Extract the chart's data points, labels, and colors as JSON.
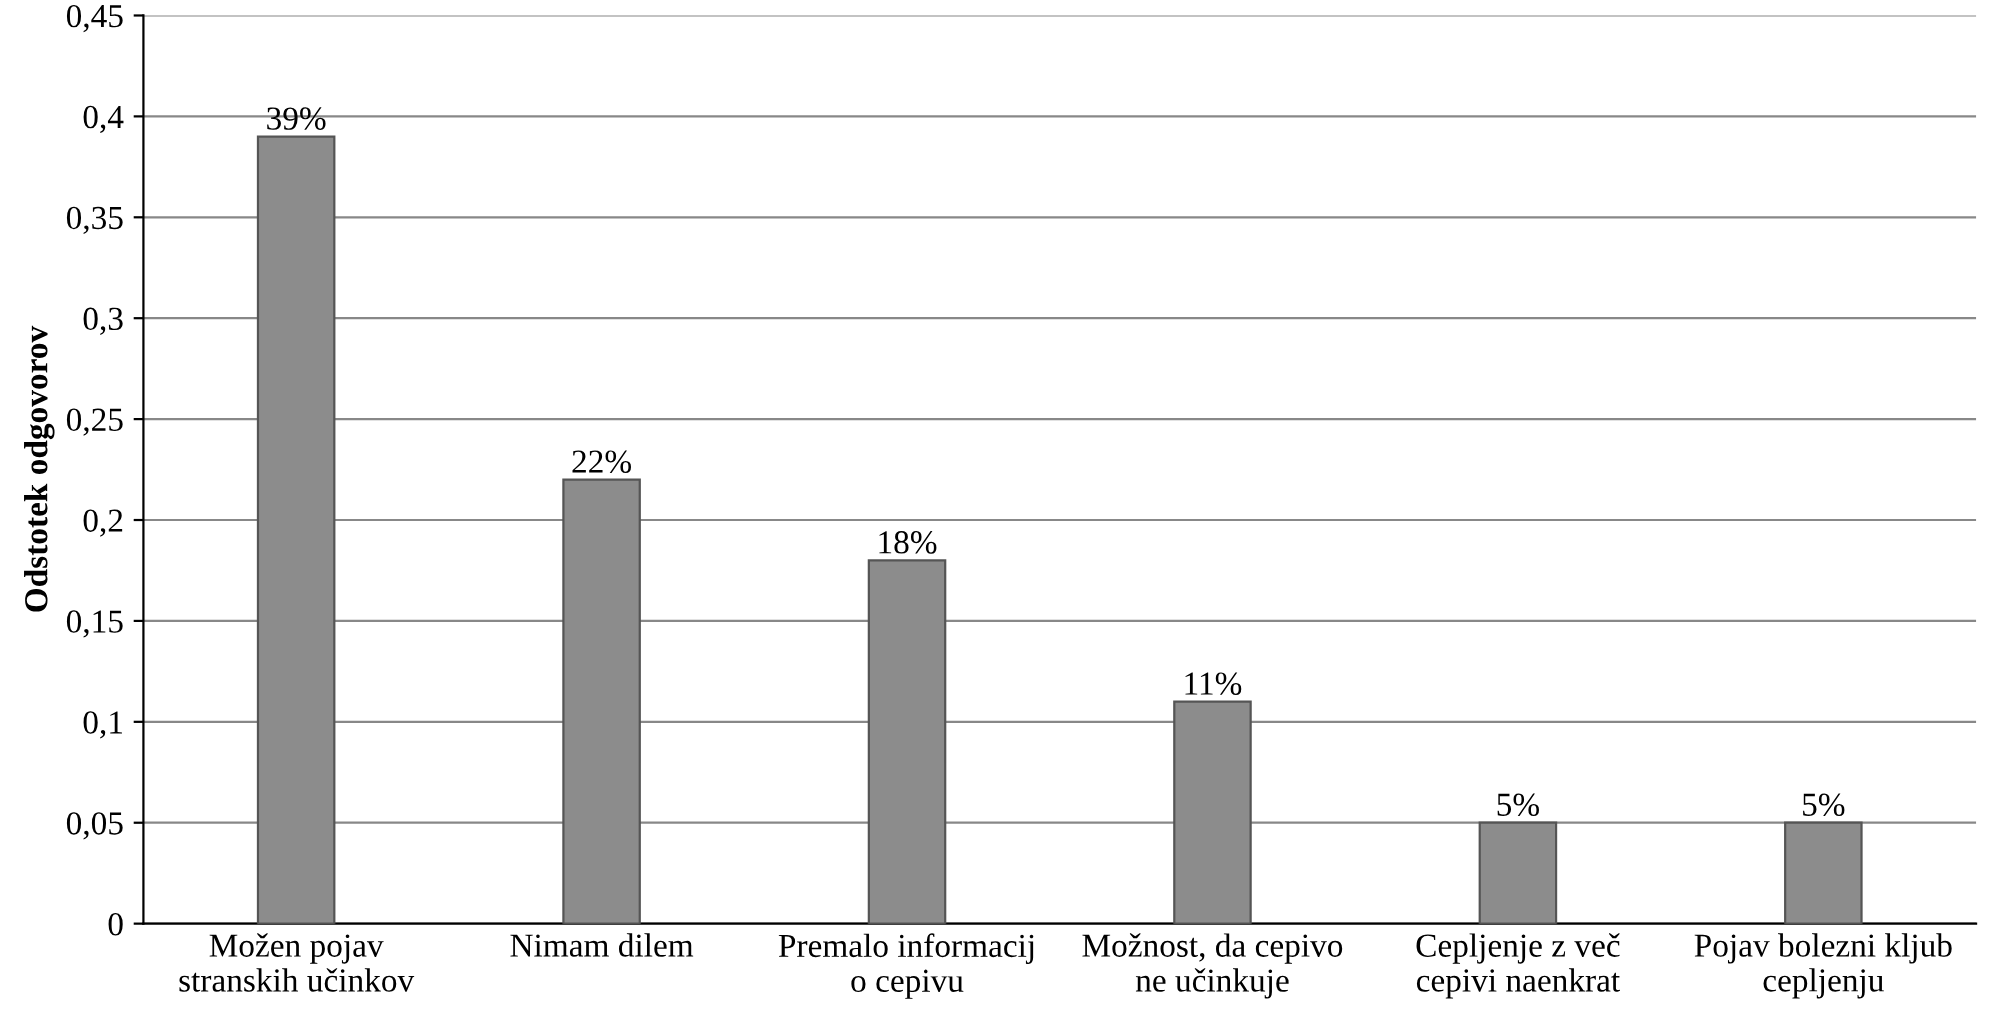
{
  "chart_data": {
    "type": "bar",
    "ylabel": "Odstotek odgovorov",
    "categories": [
      "Možen pojav\nstranskih učinkov",
      "Nimam dilem",
      "Premalo informacij\no cepivu",
      "Možnost, da cepivo\nne učinkuje",
      "Cepljenje z več\ncepivi naenkrat",
      "Pojav bolezni kljub\ncepljenju"
    ],
    "values": [
      0.39,
      0.22,
      0.18,
      0.11,
      0.05,
      0.05
    ],
    "value_labels": [
      "39%",
      "22%",
      "18%",
      "11%",
      "5%",
      "5%"
    ],
    "color": "#8c8c8c",
    "ylim": [
      0,
      0.45
    ],
    "yticks": [
      0,
      {
        "value": 0.05,
        "label": "0,05"
      },
      {
        "value": 0.1,
        "label": "0,1"
      },
      {
        "value": 0.15,
        "label": "0,15"
      },
      {
        "value": 0.2,
        "label": "0,2"
      },
      {
        "value": 0.25,
        "label": "0,25"
      },
      {
        "value": 0.3,
        "label": "0,3"
      },
      {
        "value": 0.35,
        "label": "0,35"
      },
      {
        "value": 0.4,
        "label": "0,4"
      },
      {
        "value": 0.45,
        "label": "0,45"
      }
    ],
    "grid": "y"
  }
}
